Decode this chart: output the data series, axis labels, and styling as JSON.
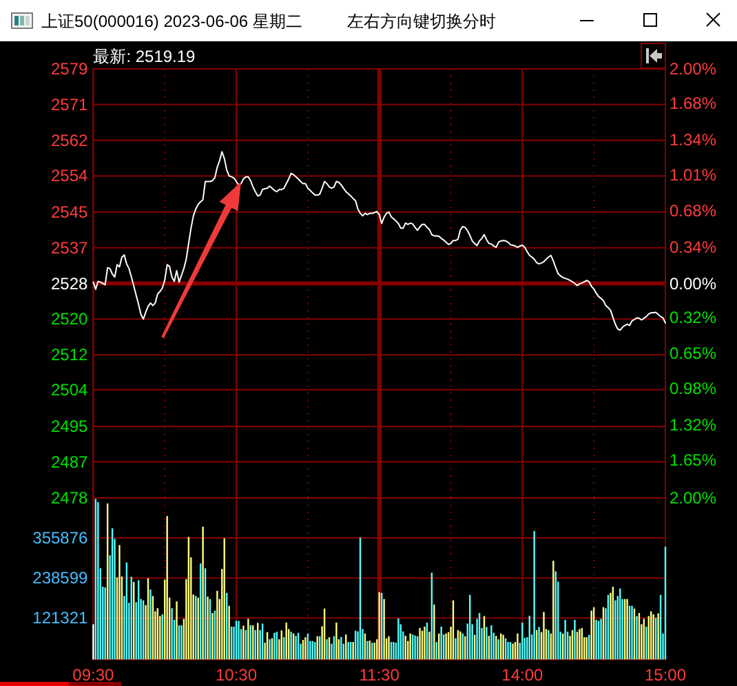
{
  "chart_data": [
    {
      "type": "line",
      "title": "上证50(000016) 2023-06-06 星期二",
      "subtitle": "左右方向键切换分时",
      "annotations": [
        "最新: 2519.19"
      ],
      "categories": [
        null,
        null,
        null,
        null,
        null,
        null,
        null,
        null,
        null,
        null,
        null,
        null,
        null,
        null,
        null,
        null,
        null,
        null,
        null,
        null,
        null,
        null,
        null,
        null,
        null,
        null,
        null,
        null,
        null,
        null,
        null,
        null,
        null,
        null,
        null,
        null,
        null,
        null,
        null,
        null,
        null,
        null,
        null,
        null,
        null,
        null,
        null,
        null,
        null,
        null,
        null,
        null,
        null,
        null,
        null,
        null,
        null,
        null,
        null,
        null,
        null,
        null,
        null,
        null,
        null,
        null,
        null,
        null,
        null,
        null,
        null,
        null,
        null,
        null,
        null,
        null,
        null,
        null,
        null,
        null,
        null,
        null,
        null,
        null,
        null,
        null,
        null,
        null,
        null,
        null,
        null,
        null,
        null,
        null,
        null,
        null,
        null,
        null,
        null,
        null,
        null,
        null,
        null,
        null,
        null,
        null,
        null,
        null,
        null,
        null,
        null,
        null,
        null,
        null,
        null,
        null,
        null,
        null,
        null,
        null,
        null,
        null,
        null,
        null,
        null,
        null,
        null,
        null,
        null,
        null,
        null,
        null,
        null,
        null,
        null,
        null,
        null,
        null,
        null,
        null,
        null,
        null,
        null,
        null,
        null,
        null,
        null,
        null,
        null,
        null,
        null,
        null,
        null,
        null,
        null,
        null,
        null,
        null,
        null,
        null,
        null,
        null,
        null,
        null,
        null,
        null,
        null,
        null,
        null,
        null,
        null,
        null,
        null,
        null,
        null,
        null,
        null,
        null,
        null,
        null,
        null,
        null,
        null,
        null,
        null,
        null,
        null,
        null,
        null,
        null,
        null,
        null,
        null,
        null,
        null,
        null,
        null,
        null,
        null,
        null,
        null,
        null,
        null,
        null,
        null,
        null,
        null,
        null,
        null,
        null,
        null,
        null,
        null,
        null,
        null,
        null,
        null,
        null,
        null,
        null,
        null,
        null,
        null,
        null,
        null,
        null,
        null,
        null,
        null,
        null,
        null,
        null,
        null,
        null,
        null,
        null,
        null,
        null,
        null,
        null,
        null
      ],
      "color": "#ffffff",
      "values": [
        2528.8,
        2527.1,
        2529.0,
        2528.8,
        2528.5,
        2528.2,
        2532.2,
        2532.0,
        2530.7,
        2530.0,
        2532.9,
        2532.4,
        2534.7,
        2535.2,
        2533.1,
        2532.0,
        2530.0,
        2527.9,
        2525.7,
        2523.6,
        2521.2,
        2520.1,
        2521.7,
        2523.1,
        2523.9,
        2523.3,
        2523.9,
        2526.0,
        2526.6,
        2527.4,
        2529.3,
        2532.9,
        2532.5,
        2530.0,
        2529.0,
        2531.5,
        2528.8,
        2530.4,
        2532.0,
        2534.2,
        2537.9,
        2541.5,
        2544.4,
        2546.0,
        2547.1,
        2547.7,
        2548.2,
        2552.5,
        2552.5,
        2552.5,
        2552.7,
        2553.4,
        2555.8,
        2557.4,
        2559.5,
        2557.9,
        2555.2,
        2553.8,
        2553.6,
        2553.3,
        2552.5,
        2551.7,
        2552.0,
        2553.1,
        2553.6,
        2553.6,
        2552.7,
        2551.2,
        2550.1,
        2549.1,
        2549.3,
        2550.6,
        2550.8,
        2550.9,
        2551.4,
        2550.9,
        2550.4,
        2550.1,
        2550.6,
        2550.6,
        2550.9,
        2552.0,
        2553.1,
        2554.4,
        2554.1,
        2553.6,
        2553.1,
        2552.5,
        2552.0,
        2552.0,
        2550.9,
        2550.4,
        2549.8,
        2549.3,
        2549.3,
        2549.5,
        2550.9,
        2552.5,
        2552.0,
        2551.2,
        2550.9,
        2551.2,
        2552.5,
        2552.3,
        2551.7,
        2550.9,
        2550.1,
        2549.6,
        2549.1,
        2548.5,
        2548.0,
        2546.0,
        2545.0,
        2544.4,
        2545.0,
        2544.7,
        2545.0,
        2545.0,
        2545.2,
        2545.4,
        2544.7,
        2542.6,
        2544.1,
        2545.0,
        2545.3,
        2544.2,
        2543.7,
        2543.2,
        2542.6,
        2541.5,
        2541.5,
        2542.7,
        2542.4,
        2542.7,
        2542.5,
        2541.7,
        2541.0,
        2541.8,
        2542.4,
        2542.4,
        2541.7,
        2541.2,
        2540.0,
        2539.7,
        2539.7,
        2539.6,
        2539.1,
        2538.7,
        2538.2,
        2537.7,
        2537.9,
        2538.6,
        2538.6,
        2538.9,
        2541.1,
        2541.9,
        2541.7,
        2540.9,
        2539.8,
        2538.5,
        2537.9,
        2537.4,
        2538.5,
        2539.1,
        2540.0,
        2538.8,
        2537.9,
        2537.8,
        2537.3,
        2537.0,
        2538.2,
        2538.5,
        2538.6,
        2538.5,
        2538.2,
        2537.6,
        2537.5,
        2537.3,
        2537.0,
        2537.3,
        2537.5,
        2537.0,
        2536.0,
        2535.1,
        2534.7,
        2534.2,
        2533.4,
        2533.1,
        2533.3,
        2533.6,
        2534.2,
        2534.7,
        2535.1,
        2533.8,
        2532.2,
        2530.8,
        2530.3,
        2529.9,
        2529.7,
        2529.5,
        2529.2,
        2528.9,
        2528.5,
        2528.0,
        2528.4,
        2528.6,
        2528.9,
        2529.2,
        2528.9,
        2527.8,
        2527.2,
        2526.2,
        2525.4,
        2525.0,
        2524.4,
        2523.3,
        2522.8,
        2522.2,
        2520.5,
        2518.9,
        2517.8,
        2517.5,
        2518.2,
        2518.6,
        2518.9,
        2518.6,
        2519.7,
        2520.0,
        2520.4,
        2520.3,
        2519.9,
        2520.3,
        2520.7,
        2521.3,
        2521.6,
        2521.6,
        2521.7,
        2521.2,
        2520.7,
        2520.4,
        2519.2
      ],
      "ylim": [
        2478,
        2579
      ],
      "yticks": [
        2478,
        {
          "value": 2486.5,
          "label": "2487"
        },
        {
          "value": 2494.8,
          "label": "2495"
        },
        {
          "value": 2503.5,
          "label": "2504"
        },
        {
          "value": 2511.7,
          "label": "2512"
        },
        {
          "value": 2520.1,
          "label": "2520"
        },
        {
          "value": 2528.4,
          "label": "2528"
        },
        {
          "value": 2536.9,
          "label": "2537"
        },
        {
          "value": 2545.3,
          "label": "2545"
        },
        {
          "value": 2553.8,
          "label": "2554"
        },
        {
          "value": 2562.2,
          "label": "2562"
        },
        {
          "value": 2570.6,
          "label": "2571"
        },
        2579
      ],
      "y2lim": [
        -2,
        2
      ],
      "y2ticks": [
        {
          "value": -2,
          "label": "2.00%"
        },
        {
          "value": -1.65,
          "label": "1.65%"
        },
        {
          "value": -1.32,
          "label": "1.32%"
        },
        {
          "value": -0.98,
          "label": "0.98%"
        },
        {
          "value": -0.65,
          "label": "0.65%"
        },
        {
          "value": -0.32,
          "label": "0.32%"
        },
        {
          "value": 0,
          "label": "0.00%"
        },
        {
          "value": 0.34,
          "label": "0.34%"
        },
        {
          "value": 0.68,
          "label": "0.68%"
        },
        {
          "value": 1.01,
          "label": "1.01%"
        },
        {
          "value": 1.34,
          "label": "1.34%"
        },
        {
          "value": 1.68,
          "label": "1.68%"
        },
        {
          "value": 2,
          "label": "2.00%"
        }
      ],
      "grid": true,
      "tick_labels": "y"
    },
    {
      "type": "bar",
      "categories": [
        "09:30",
        null,
        null,
        null,
        null,
        null,
        null,
        null,
        null,
        null,
        null,
        null,
        null,
        null,
        null,
        null,
        null,
        null,
        null,
        null,
        null,
        null,
        null,
        null,
        null,
        null,
        null,
        null,
        null,
        null,
        null,
        null,
        null,
        null,
        null,
        null,
        null,
        null,
        null,
        null,
        null,
        null,
        null,
        null,
        null,
        null,
        null,
        null,
        null,
        null,
        null,
        null,
        null,
        null,
        null,
        null,
        null,
        null,
        null,
        null,
        "10:30",
        null,
        null,
        null,
        null,
        null,
        null,
        null,
        null,
        null,
        null,
        null,
        null,
        null,
        null,
        null,
        null,
        null,
        null,
        null,
        null,
        null,
        null,
        null,
        null,
        null,
        null,
        null,
        null,
        null,
        null,
        null,
        null,
        null,
        null,
        null,
        null,
        null,
        null,
        null,
        null,
        null,
        null,
        null,
        null,
        null,
        null,
        null,
        null,
        null,
        null,
        null,
        null,
        null,
        null,
        null,
        null,
        null,
        null,
        null,
        "11:30",
        null,
        null,
        null,
        null,
        null,
        null,
        null,
        null,
        null,
        null,
        null,
        null,
        null,
        null,
        null,
        null,
        null,
        null,
        null,
        null,
        null,
        null,
        null,
        null,
        null,
        null,
        null,
        null,
        null,
        null,
        null,
        null,
        null,
        null,
        null,
        null,
        null,
        null,
        null,
        null,
        null,
        null,
        null,
        null,
        null,
        null,
        null,
        null,
        null,
        null,
        null,
        null,
        null,
        null,
        null,
        null,
        null,
        null,
        null,
        "14:00",
        null,
        null,
        null,
        null,
        null,
        null,
        null,
        null,
        null,
        null,
        null,
        null,
        null,
        null,
        null,
        null,
        null,
        null,
        null,
        null,
        null,
        null,
        null,
        null,
        null,
        null,
        null,
        null,
        null,
        null,
        null,
        null,
        null,
        null,
        null,
        null,
        null,
        null,
        null,
        null,
        null,
        null,
        null,
        null,
        null,
        null,
        null,
        null,
        null,
        null,
        null,
        null,
        null,
        null,
        null,
        null,
        null,
        null,
        null,
        "15:00"
      ],
      "values": [
        103000,
        470000,
        461000,
        267000,
        213000,
        211000,
        457000,
        305000,
        384000,
        353000,
        240000,
        335000,
        243000,
        186000,
        284000,
        166000,
        242000,
        227000,
        168000,
        232000,
        177000,
        173000,
        159000,
        238000,
        205000,
        186000,
        141000,
        150000,
        127000,
        132000,
        234000,
        420000,
        181000,
        150000,
        116000,
        170000,
        100000,
        100000,
        119000,
        235000,
        359000,
        299000,
        190000,
        186000,
        181000,
        281000,
        389000,
        267000,
        184000,
        177000,
        136000,
        143000,
        201000,
        177000,
        265000,
        355000,
        195000,
        157000,
        96000,
        96000,
        113000,
        113000,
        89000,
        99000,
        86000,
        119000,
        100000,
        100000,
        86000,
        107000,
        86000,
        105000,
        49000,
        80000,
        59000,
        62000,
        78000,
        81000,
        59000,
        85000,
        65000,
        108000,
        89000,
        81000,
        76000,
        69000,
        78000,
        46000,
        57000,
        65000,
        76000,
        54000,
        54000,
        51000,
        68000,
        68000,
        97000,
        149000,
        59000,
        65000,
        46000,
        68000,
        108000,
        59000,
        66000,
        46000,
        73000,
        51000,
        51000,
        51000,
        84000,
        82000,
        357000,
        89000,
        76000,
        54000,
        55000,
        49000,
        49000,
        59000,
        197000,
        195000,
        177000,
        62000,
        68000,
        51000,
        51000,
        49000,
        120000,
        103000,
        82000,
        69000,
        54000,
        76000,
        73000,
        70000,
        68000,
        92000,
        84000,
        96000,
        108000,
        81000,
        254000,
        161000,
        51000,
        76000,
        96000,
        73000,
        76000,
        80000,
        96000,
        173000,
        62000,
        86000,
        82000,
        76000,
        68000,
        105000,
        189000,
        103000,
        72000,
        119000,
        136000,
        92000,
        127000,
        95000,
        69000,
        100000,
        78000,
        69000,
        59000,
        76000,
        72000,
        62000,
        51000,
        51000,
        46000,
        51000,
        76000,
        49000,
        108000,
        63000,
        65000,
        128000,
        73000,
        376000,
        86000,
        95000,
        80000,
        139000,
        89000,
        86000,
        76000,
        289000,
        258000,
        228000,
        81000,
        76000,
        116000,
        81000,
        69000,
        86000,
        116000,
        81000,
        89000,
        92000,
        65000,
        65000,
        72000,
        143000,
        153000,
        116000,
        113000,
        119000,
        153000,
        150000,
        189000,
        195000,
        213000,
        173000,
        186000,
        208000,
        177000,
        177000,
        177000,
        157000,
        157000,
        149000,
        127000,
        136000,
        103000,
        119000,
        96000,
        127000,
        141000,
        132000,
        122000,
        135000,
        189000,
        76000,
        330000
      ],
      "colors": [
        "#ffffff",
        "#54ffff",
        "#54ffff",
        "#54ffff",
        "#54ffff",
        "#54ffff",
        "#ffff80",
        "#54ffff",
        "#54ffff",
        "#54ffff",
        "#ffff80",
        "#ffff80",
        "#ffff80",
        "#54ffff",
        "#54ffff",
        "#54ffff",
        "#54ffff",
        "#ffff80",
        "#54ffff",
        "#54ffff",
        "#54ffff",
        "#54ffff",
        "#ffff80",
        "#ffff80",
        "#54ffff",
        "#ffff80",
        "#ffff80",
        "#ffff80",
        "#ffff80",
        "#54ffff",
        "#ffff80",
        "#ffff80",
        "#ffff80",
        "#54ffff",
        "#54ffff",
        "#ffff80",
        "#54ffff",
        "#54ffff",
        "#ffff80",
        "#ffff80",
        "#ffff80",
        "#ffff80",
        "#ffff80",
        "#54ffff",
        "#ffff80",
        "#54ffff",
        "#ffff80",
        "#54ffff",
        "#ffff80",
        "#54ffff",
        "#ffff80",
        "#54ffff",
        "#ffff80",
        "#ffff80",
        "#ffff80",
        "#ffff80",
        "#54ffff",
        "#ffff80",
        "#54ffff",
        "#54ffff",
        "#54ffff",
        "#54ffff",
        "#54ffff",
        "#ffff80",
        "#54ffff",
        "#ffff80",
        "#54ffff",
        "#ffff80",
        "#54ffff",
        "#ffff80",
        "#54ffff",
        "#54ffff",
        "#ffff80",
        "#ffff80",
        "#54ffff",
        "#ffff80",
        "#54ffff",
        "#54ffff",
        "#ffff80",
        "#ffff80",
        "#54ffff",
        "#ffff80",
        "#ffff80",
        "#54ffff",
        "#ffff80",
        "#54ffff",
        "#54ffff",
        "#54ffff",
        "#ffff80",
        "#ffff80",
        "#54ffff",
        "#54ffff",
        "#54ffff",
        "#54ffff",
        "#ffff80",
        "#54ffff",
        "#ffff80",
        "#ffff80",
        "#54ffff",
        "#ffff80",
        "#54ffff",
        "#54ffff",
        "#ffff80",
        "#ffff80",
        "#54ffff",
        "#54ffff",
        "#ffff80",
        "#54ffff",
        "#54ffff",
        "#ffff80",
        "#54ffff",
        "#54ffff",
        "#54ffff",
        "#54ffff",
        "#ffff80",
        "#54ffff",
        "#ffff80",
        "#54ffff",
        "#ffff80",
        "#ffff80",
        "#ffff80",
        "#54ffff",
        "#ffff80",
        "#ffff80",
        "#ffff80",
        "#54ffff",
        "#54ffff",
        "#54ffff",
        "#54ffff",
        "#54ffff",
        "#54ffff",
        "#ffff80",
        "#ffff80",
        "#ffff80",
        "#54ffff",
        "#54ffff",
        "#54ffff",
        "#ffff80",
        "#ffff80",
        "#ffff80",
        "#54ffff",
        "#ffff80",
        "#54ffff",
        "#ffff80",
        "#54ffff",
        "#ffff80",
        "#54ffff",
        "#54ffff",
        "#ffff80",
        "#ffff80",
        "#ffff80",
        "#ffff80",
        "#54ffff",
        "#ffff80",
        "#ffff80",
        "#54ffff",
        "#ffff80",
        "#54ffff",
        "#54ffff",
        "#54ffff",
        "#ffff80",
        "#54ffff",
        "#54ffff",
        "#54ffff",
        "#ffff80",
        "#54ffff",
        "#ffff80",
        "#54ffff",
        "#54ffff",
        "#ffff80",
        "#54ffff",
        "#ffff80",
        "#ffff80",
        "#54ffff",
        "#54ffff",
        "#54ffff",
        "#ffff80",
        "#ffff80",
        "#ffff80",
        "#54ffff",
        "#54ffff",
        "#54ffff",
        "#54ffff",
        "#54ffff",
        "#54ffff",
        "#54ffff",
        "#ffff80",
        "#54ffff",
        "#ffff80",
        "#ffff80",
        "#ffff80",
        "#54ffff",
        "#ffff80",
        "#ffff80",
        "#54ffff",
        "#54ffff",
        "#54ffff",
        "#ffff80",
        "#54ffff",
        "#54ffff",
        "#ffff80",
        "#ffff80",
        "#54ffff",
        "#ffff80",
        "#ffff80",
        "#ffff80",
        "#ffff80",
        "#ffff80",
        "#54ffff",
        "#ffff80",
        "#ffff80",
        "#54ffff",
        "#54ffff",
        "#54ffff",
        "#ffff80",
        "#54ffff",
        "#54ffff",
        "#ffff80",
        "#ffff80",
        "#54ffff",
        "#54ffff",
        "#54ffff",
        "#54ffff",
        "#ffff80",
        "#ffff80",
        "#54ffff",
        "#54ffff",
        "#ffff80",
        "#54ffff",
        "#ffff80",
        "#ffff80",
        "#ffff80",
        "#54ffff",
        "#ffff80",
        "#ffff80",
        "#ffff80",
        "#54ffff",
        "#ffff80",
        "#54ffff",
        "#54ffff",
        "#54ffff"
      ],
      "ylim": [
        0,
        473000
      ],
      "yticks": [
        121321,
        238599,
        355876
      ],
      "grid": true
    }
  ]
}
